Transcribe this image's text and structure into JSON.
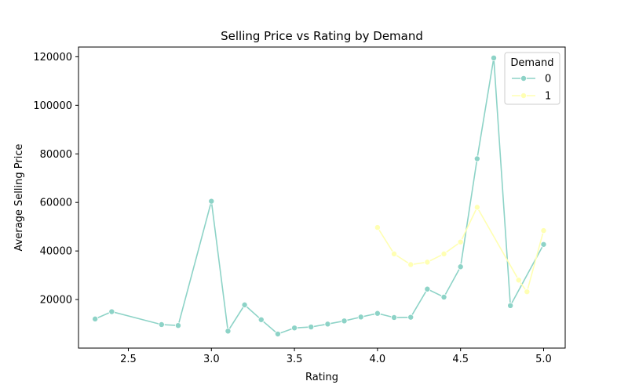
{
  "chart_data": {
    "type": "line",
    "title": "Selling Price vs Rating by Demand",
    "xlabel": "Rating",
    "ylabel": "Average Selling Price",
    "xlim": [
      2.2,
      5.13
    ],
    "ylim": [
      0,
      124000
    ],
    "xticks": [
      2.5,
      3.0,
      3.5,
      4.0,
      4.5,
      5.0
    ],
    "xtick_labels": [
      "2.5",
      "3.0",
      "3.5",
      "4.0",
      "4.5",
      "5.0"
    ],
    "yticks": [
      20000,
      40000,
      60000,
      80000,
      100000,
      120000
    ],
    "ytick_labels": [
      "20000",
      "40000",
      "60000",
      "80000",
      "100000",
      "120000"
    ],
    "grid": false,
    "legend": {
      "title": "Demand",
      "position": "top-right"
    },
    "series": [
      {
        "name": "0",
        "color": "#8dd3c7",
        "points": [
          [
            2.3,
            12000
          ],
          [
            2.4,
            15000
          ],
          [
            2.7,
            9700
          ],
          [
            2.8,
            9300
          ],
          [
            3.0,
            60500
          ],
          [
            3.1,
            7000
          ],
          [
            3.2,
            17800
          ],
          [
            3.3,
            11700
          ],
          [
            3.4,
            5800
          ],
          [
            3.5,
            8300
          ],
          [
            3.6,
            8700
          ],
          [
            3.7,
            9900
          ],
          [
            3.8,
            11200
          ],
          [
            3.9,
            12800
          ],
          [
            4.0,
            14300
          ],
          [
            4.1,
            12600
          ],
          [
            4.2,
            12700
          ],
          [
            4.3,
            24300
          ],
          [
            4.4,
            21000
          ],
          [
            4.5,
            33500
          ],
          [
            4.6,
            78000
          ],
          [
            4.7,
            119500
          ],
          [
            4.8,
            17500
          ],
          [
            5.0,
            42700
          ]
        ]
      },
      {
        "name": "1",
        "color": "#ffffb3",
        "points": [
          [
            4.0,
            49700
          ],
          [
            4.1,
            38800
          ],
          [
            4.2,
            34400
          ],
          [
            4.3,
            35400
          ],
          [
            4.4,
            38800
          ],
          [
            4.5,
            43700
          ],
          [
            4.6,
            58000
          ],
          [
            4.85,
            28000
          ],
          [
            4.9,
            23200
          ],
          [
            5.0,
            48400
          ]
        ]
      }
    ]
  }
}
